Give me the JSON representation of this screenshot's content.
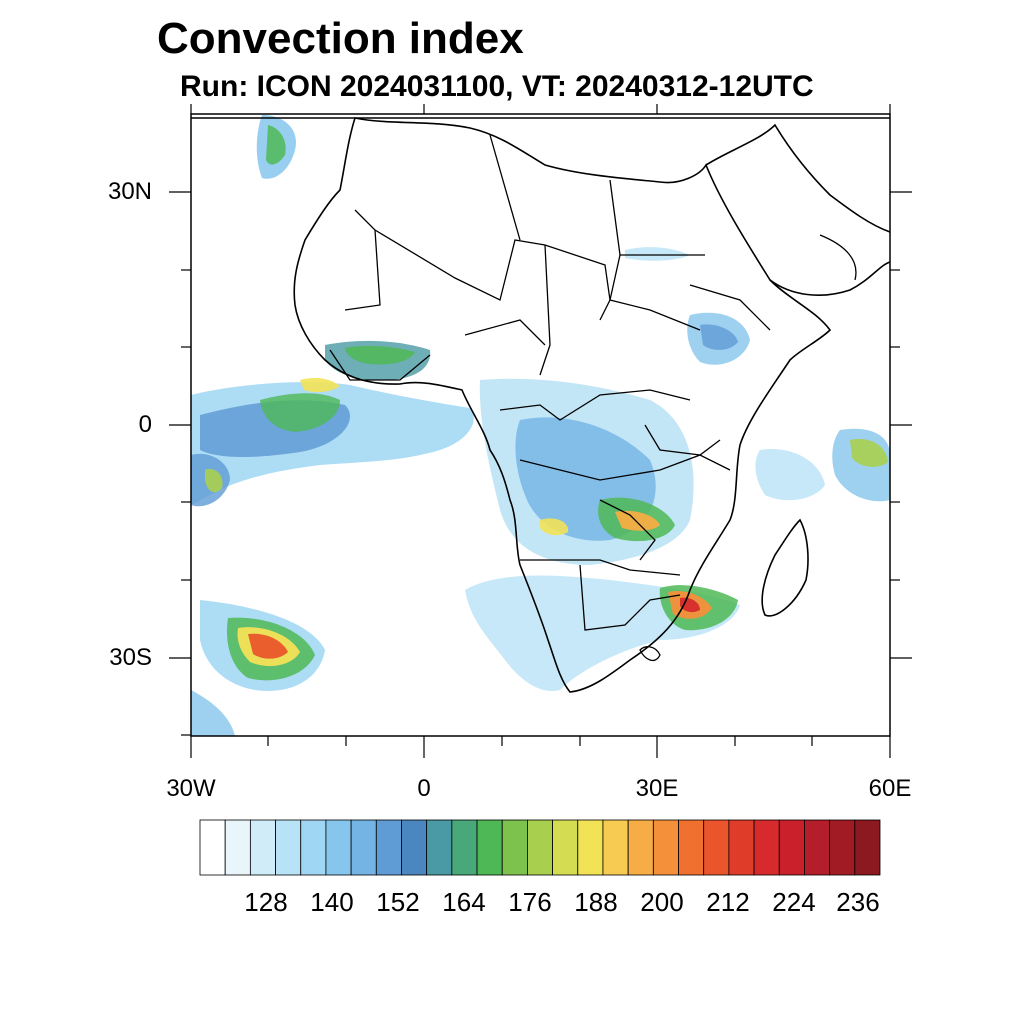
{
  "title": "Convection index",
  "subtitle": "Run: ICON 2024031100,  VT: 20240312-12UTC",
  "map": {
    "extent": {
      "lon": [
        -30,
        60
      ],
      "lat": [
        -40,
        40
      ]
    },
    "lat_labels": [
      "30N",
      "0",
      "30S"
    ],
    "lon_labels": [
      "30W",
      "0",
      "30E",
      "60E"
    ]
  },
  "colorbar": {
    "labels": [
      "128",
      "140",
      "152",
      "164",
      "176",
      "188",
      "200",
      "212",
      "224",
      "236"
    ],
    "colors": [
      "#ffffff",
      "#e8f5fb",
      "#d0ecf8",
      "#b8e2f6",
      "#9fd6f3",
      "#86c6ec",
      "#73b4e4",
      "#5f9bd4",
      "#4a86bf",
      "#4a9aa5",
      "#48a87a",
      "#4fb856",
      "#7cc24c",
      "#a8cf4e",
      "#d4dc52",
      "#f2e256",
      "#f7cb52",
      "#f6ad45",
      "#f4903a",
      "#f07030",
      "#ea552b",
      "#e03c2a",
      "#d62a2c",
      "#c9202c",
      "#b41d2a",
      "#a11b25",
      "#8c1820"
    ]
  }
}
